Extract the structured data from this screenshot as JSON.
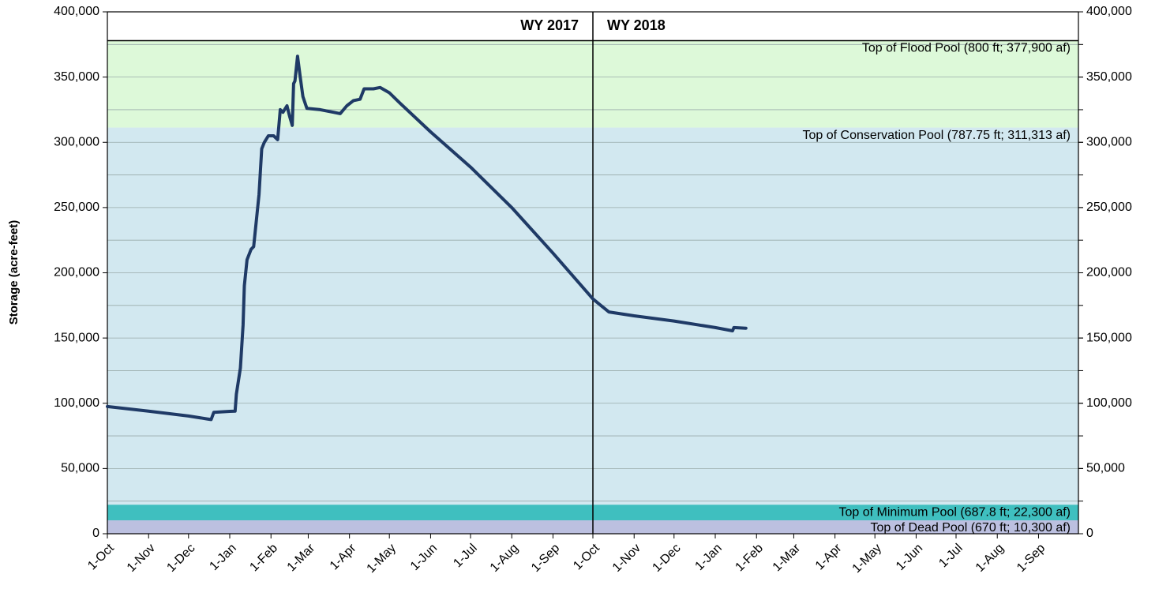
{
  "chart_data": {
    "type": "line",
    "y_axis_label": "Storage (acre-feet)",
    "xlim": [
      0,
      730
    ],
    "xticks": [
      {
        "value": 0,
        "label": "1-Oct"
      },
      {
        "value": 31,
        "label": "1-Nov"
      },
      {
        "value": 61,
        "label": "1-Dec"
      },
      {
        "value": 92,
        "label": "1-Jan"
      },
      {
        "value": 123,
        "label": "1-Feb"
      },
      {
        "value": 151,
        "label": "1-Mar"
      },
      {
        "value": 182,
        "label": "1-Apr"
      },
      {
        "value": 212,
        "label": "1-May"
      },
      {
        "value": 243,
        "label": "1-Jun"
      },
      {
        "value": 273,
        "label": "1-Jul"
      },
      {
        "value": 304,
        "label": "1-Aug"
      },
      {
        "value": 335,
        "label": "1-Sep"
      },
      {
        "value": 365,
        "label": "1-Oct"
      },
      {
        "value": 396,
        "label": "1-Nov"
      },
      {
        "value": 426,
        "label": "1-Dec"
      },
      {
        "value": 457,
        "label": "1-Jan"
      },
      {
        "value": 488,
        "label": "1-Feb"
      },
      {
        "value": 516,
        "label": "1-Mar"
      },
      {
        "value": 547,
        "label": "1-Apr"
      },
      {
        "value": 577,
        "label": "1-May"
      },
      {
        "value": 608,
        "label": "1-Jun"
      },
      {
        "value": 638,
        "label": "1-Jul"
      },
      {
        "value": 669,
        "label": "1-Aug"
      },
      {
        "value": 700,
        "label": "1-Sep"
      }
    ],
    "ylim": [
      0,
      400000
    ],
    "yticks": [
      0,
      {
        "value": 50000,
        "label": "50,000"
      },
      {
        "value": 100000,
        "label": "100,000"
      },
      {
        "value": 150000,
        "label": "150,000"
      },
      {
        "value": 200000,
        "label": "200,000"
      },
      {
        "value": 250000,
        "label": "250,000"
      },
      {
        "value": 300000,
        "label": "300,000"
      },
      {
        "value": 350000,
        "label": "350,000"
      },
      {
        "value": 400000,
        "label": "400,000"
      }
    ],
    "grid_lines": [
      25000,
      50000,
      75000,
      100000,
      125000,
      150000,
      175000,
      200000,
      225000,
      250000,
      275000,
      300000,
      325000,
      350000,
      375000
    ],
    "zones": [
      {
        "label": "Top of Dead Pool (670 ft; 10,300 af)",
        "top": 10300,
        "color": "#bcc0e0"
      },
      {
        "label": "Top of Minimum Pool (687.8 ft; 22,300 af)",
        "top": 22300,
        "color": "#3fbfbf"
      },
      {
        "label": "Top of Conservation Pool (787.75 ft; 311,313 af)",
        "top": 311313,
        "color": "#d2e8f0"
      },
      {
        "label": "Top of Flood Pool (800 ft; 377,900 af)",
        "top": 377900,
        "color": "#ddf9d9"
      }
    ],
    "water_year_divider": 365,
    "water_years": [
      "WY 2017",
      "WY 2018"
    ],
    "series": [
      {
        "color": "#1f3a66",
        "x": [
          0,
          31,
          61,
          75,
          78,
          80,
          92,
          96,
          97,
          100,
          102,
          103,
          105,
          108,
          110,
          112,
          114,
          116,
          118,
          121,
          125,
          128,
          130,
          132,
          135,
          137,
          139,
          140,
          141,
          143,
          145,
          147,
          150,
          160,
          170,
          175,
          180,
          185,
          190,
          193,
          200,
          205,
          212,
          220,
          243,
          273,
          304,
          335,
          365,
          377,
          396,
          426,
          457,
          470,
          471,
          480
        ],
        "values": [
          97500,
          94000,
          90200,
          88000,
          87500,
          93000,
          93800,
          94000,
          107000,
          127000,
          160000,
          190000,
          210000,
          218000,
          220000,
          240000,
          260000,
          295000,
          300000,
          305000,
          305000,
          302000,
          325000,
          323000,
          328000,
          320000,
          313000,
          345000,
          347000,
          366000,
          350000,
          335000,
          326000,
          325000,
          323000,
          322000,
          328000,
          332000,
          333000,
          341000,
          341000,
          342000,
          338000,
          330000,
          308000,
          281000,
          250000,
          215000,
          180000,
          170000,
          167000,
          163000,
          158000,
          155500,
          158000,
          157500
        ]
      }
    ]
  }
}
